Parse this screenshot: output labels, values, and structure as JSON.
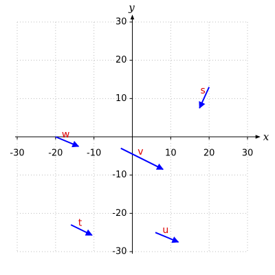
{
  "chart_data": {
    "type": "quiver",
    "xlabel": "x",
    "ylabel": "y",
    "xlim": [
      -30,
      30
    ],
    "ylim": [
      -30,
      30
    ],
    "xticks": [
      -30,
      -20,
      -10,
      10,
      20,
      30
    ],
    "yticks": [
      -30,
      -20,
      -10,
      10,
      20,
      30
    ],
    "grid": true,
    "color": "#0000ff",
    "label_color": "#dd0000",
    "vectors": [
      {
        "name": "s",
        "x": 20,
        "y": 13,
        "u": -2.5,
        "v": -5.5
      },
      {
        "name": "w",
        "x": -20,
        "y": 0,
        "u": 6,
        "v": -2.5
      },
      {
        "name": "v",
        "x": -3,
        "y": -3,
        "u": 11,
        "v": -5.5
      },
      {
        "name": "t",
        "x": -16,
        "y": -23,
        "u": 5.5,
        "v": -2.7
      },
      {
        "name": "u",
        "x": 6,
        "y": -25,
        "u": 6,
        "v": -2.5
      }
    ]
  }
}
